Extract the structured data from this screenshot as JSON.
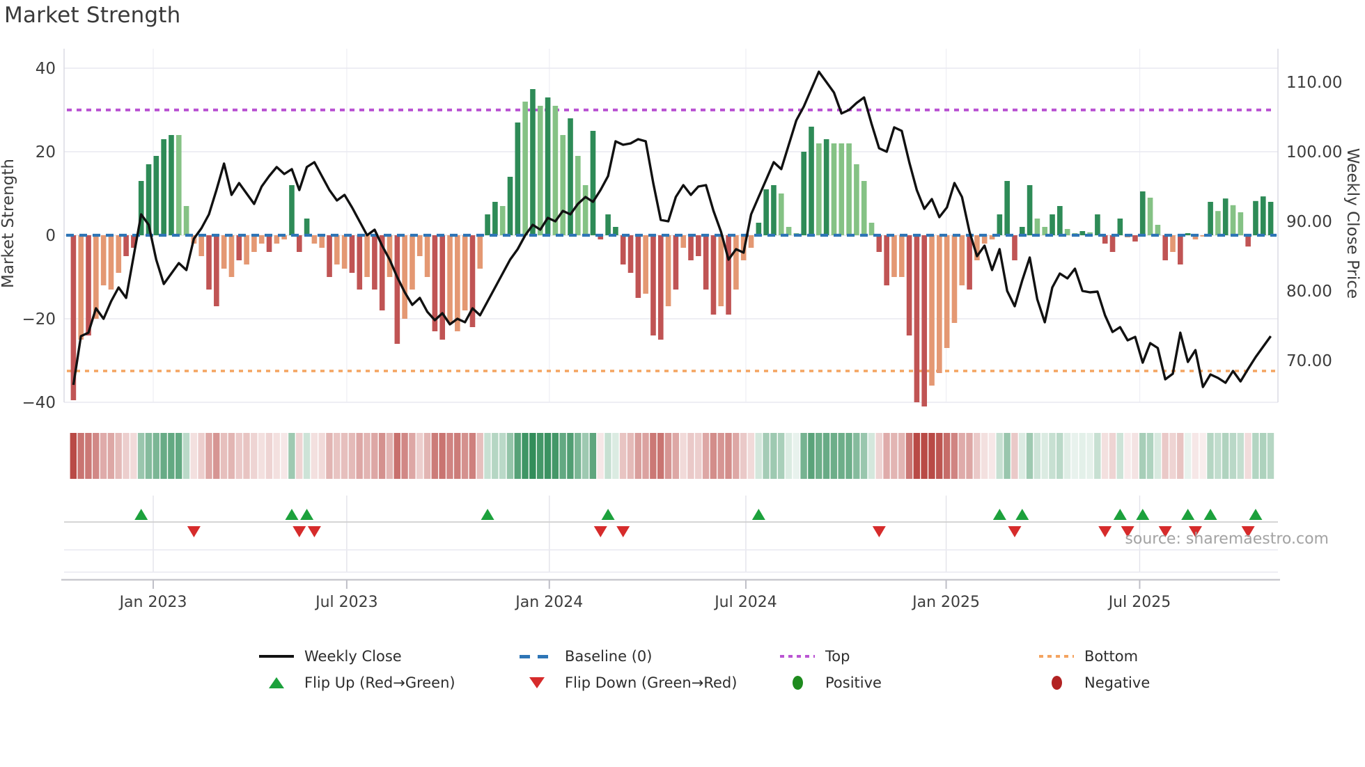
{
  "title": "Market Strength",
  "source": "source: sharemaestro.com",
  "axes": {
    "left_label": "Market Strength",
    "right_label": "Weekly Close Price",
    "left_ticks": [
      {
        "v": 40,
        "label": "40"
      },
      {
        "v": 20,
        "label": "20"
      },
      {
        "v": 0,
        "label": "0"
      },
      {
        "v": -20,
        "label": "−20"
      },
      {
        "v": -40,
        "label": "−40"
      }
    ],
    "right_ticks": [
      {
        "p": 110,
        "label": "110.00"
      },
      {
        "p": 100,
        "label": "100.00"
      },
      {
        "p": 90,
        "label": "90.00"
      },
      {
        "p": 80,
        "label": "80.00"
      },
      {
        "p": 70,
        "label": "70.00"
      }
    ],
    "x_ticks": [
      {
        "week": 10.6,
        "label": "Jan 2023"
      },
      {
        "week": 36.3,
        "label": "Jul 2023"
      },
      {
        "week": 63.2,
        "label": "Jan 2024"
      },
      {
        "week": 89.3,
        "label": "Jul 2024"
      },
      {
        "week": 115.9,
        "label": "Jan 2025"
      },
      {
        "week": 141.6,
        "label": "Jul 2025"
      }
    ]
  },
  "legend": {
    "items": [
      {
        "label": "Weekly Close",
        "type": "line"
      },
      {
        "label": "Baseline (0)",
        "type": "dash-blue"
      },
      {
        "label": "Top",
        "type": "dot-purple"
      },
      {
        "label": "Bottom",
        "type": "dot-orange"
      },
      {
        "label": "Flip Up (Red→Green)",
        "type": "tri-up"
      },
      {
        "label": "Flip Down (Green→Red)",
        "type": "tri-down"
      },
      {
        "label": "Positive",
        "type": "dot-pos"
      },
      {
        "label": "Negative",
        "type": "dot-neg"
      }
    ]
  },
  "colors": {
    "dark_green": "#2e8b57",
    "light_green": "#85c285",
    "dark_red": "#c05454",
    "salmon": "#e49873",
    "baseline_blue": "#2e75b6",
    "top_purple": "#ba55d3",
    "bottom_orange": "#f4a460",
    "price_line": "#111111",
    "flip_up_green": "#1ca13c",
    "flip_down_red": "#d62b2b",
    "grid": "#e9e9f1",
    "spine": "#cfcfd6",
    "text": "#3d3d3d"
  },
  "chart_data": {
    "type": "bar+line",
    "title": "Market Strength",
    "ylabel_left": "Market Strength",
    "ylabel_right": "Weekly Close Price",
    "ylim_left": [
      -40,
      40
    ],
    "ylim_right": [
      70,
      110
    ],
    "baseline": 0,
    "top_level": 30,
    "bottom_level": -32.5,
    "weeks": 160,
    "strength_values": [
      -39.5,
      -25,
      -24,
      -20,
      -12,
      -13,
      -9,
      -5,
      -3,
      13,
      17,
      19,
      23,
      24,
      24,
      7,
      -2,
      -5,
      -13,
      -17,
      -8,
      -10,
      -6,
      -7,
      -4,
      -2,
      -4,
      -2,
      -1,
      12,
      -4,
      4,
      -2,
      -3,
      -10,
      -7,
      -8,
      -9,
      -13,
      -10,
      -13,
      -18,
      -10,
      -26,
      -20,
      -13,
      -5,
      -10,
      -23,
      -25,
      -21,
      -23,
      -18,
      -22,
      -8,
      5,
      8,
      7,
      14,
      27,
      32,
      35,
      31,
      33,
      31,
      24,
      28,
      19,
      12,
      25,
      -1,
      5,
      2,
      -7,
      -9,
      -15,
      -14,
      -24,
      -25,
      -17,
      -13,
      -3,
      -6,
      -5,
      -13,
      -19,
      -17,
      -19,
      -13,
      -6,
      -3,
      3,
      11,
      12,
      10,
      2,
      0.5,
      20,
      26,
      22,
      23,
      22,
      22,
      22,
      17,
      13,
      3,
      -4,
      -12,
      -10,
      -10,
      -24,
      -40,
      -41,
      -36,
      -33,
      -27,
      -21,
      -12,
      -13,
      -6,
      -2,
      -1,
      5,
      13,
      -6,
      2,
      12,
      4,
      2,
      5,
      7,
      1.5,
      0.5,
      1,
      0.7,
      5,
      -2,
      -4,
      4,
      -0.5,
      -1.5,
      10.5,
      9,
      2.5,
      -6,
      -4,
      -7,
      0.5,
      -1,
      -0.3,
      8,
      5.8,
      8.8,
      7.2,
      5.5,
      -2.7,
      8.2,
      9.3,
      8
    ],
    "strength_palette": [
      "dr",
      "sr",
      "dr",
      "sr",
      "sr",
      "sr",
      "sr",
      "dr",
      "dr",
      "dg",
      "dg",
      "dg",
      "dg",
      "dg",
      "lg",
      "lg",
      "sr",
      "sr",
      "dr",
      "dr",
      "sr",
      "sr",
      "dr",
      "sr",
      "sr",
      "sr",
      "dr",
      "sr",
      "sr",
      "dg",
      "dr",
      "dg",
      "sr",
      "sr",
      "dr",
      "sr",
      "sr",
      "dr",
      "dr",
      "sr",
      "dr",
      "dr",
      "sr",
      "dr",
      "sr",
      "sr",
      "sr",
      "sr",
      "dr",
      "dr",
      "sr",
      "sr",
      "sr",
      "dr",
      "sr",
      "dg",
      "dg",
      "lg",
      "dg",
      "dg",
      "lg",
      "dg",
      "lg",
      "dg",
      "lg",
      "lg",
      "dg",
      "lg",
      "lg",
      "dg",
      "dr",
      "dg",
      "dg",
      "dr",
      "dr",
      "dr",
      "sr",
      "dr",
      "dr",
      "sr",
      "dr",
      "sr",
      "dr",
      "dr",
      "dr",
      "dr",
      "sr",
      "dr",
      "sr",
      "sr",
      "sr",
      "dg",
      "dg",
      "dg",
      "lg",
      "lg",
      "lg",
      "dg",
      "dg",
      "lg",
      "dg",
      "lg",
      "lg",
      "lg",
      "lg",
      "lg",
      "lg",
      "dr",
      "dr",
      "sr",
      "sr",
      "dr",
      "dr",
      "dr",
      "sr",
      "sr",
      "sr",
      "sr",
      "sr",
      "dr",
      "sr",
      "sr",
      "sr",
      "dg",
      "dg",
      "dr",
      "dg",
      "dg",
      "lg",
      "lg",
      "dg",
      "dg",
      "lg",
      "lg",
      "dg",
      "lg",
      "dg",
      "dr",
      "dr",
      "dg",
      "sr",
      "dr",
      "dg",
      "lg",
      "lg",
      "dr",
      "sr",
      "dr",
      "dg",
      "sr",
      "sr",
      "dg",
      "lg",
      "dg",
      "lg",
      "lg",
      "dr",
      "dg",
      "dg",
      "dg"
    ],
    "weekly_close": [
      66.5,
      73.5,
      74.0,
      77.5,
      76.0,
      78.5,
      80.5,
      79.0,
      85.0,
      91.0,
      89.5,
      84.5,
      81.0,
      82.5,
      84.0,
      83.0,
      87.5,
      89.0,
      91.0,
      94.5,
      98.3,
      93.8,
      95.5,
      94.0,
      92.5,
      95.0,
      96.5,
      97.8,
      96.8,
      97.5,
      94.5,
      97.8,
      98.5,
      96.5,
      94.5,
      93.0,
      93.8,
      92.0,
      90.0,
      88.0,
      88.8,
      86.5,
      84.5,
      82.0,
      79.8,
      78.0,
      79.0,
      77.0,
      75.8,
      76.8,
      75.2,
      76.0,
      75.5,
      77.5,
      76.5,
      78.5,
      80.5,
      82.5,
      84.5,
      86.0,
      88.0,
      89.5,
      88.8,
      90.5,
      90.0,
      91.5,
      91.0,
      92.5,
      93.5,
      92.8,
      94.5,
      96.5,
      101.5,
      101.0,
      101.2,
      101.8,
      101.5,
      95.5,
      90.2,
      90.0,
      93.5,
      95.2,
      93.8,
      95.0,
      95.2,
      91.5,
      88.5,
      84.5,
      86.0,
      85.5,
      91.0,
      93.5,
      96.0,
      98.5,
      97.5,
      101.0,
      104.5,
      106.5,
      109.0,
      111.5,
      110.0,
      108.5,
      105.5,
      106.0,
      107.0,
      107.8,
      104.0,
      100.5,
      100.0,
      103.5,
      103.0,
      98.5,
      94.5,
      91.8,
      93.2,
      90.6,
      92.0,
      95.5,
      93.5,
      88.5,
      85.0,
      86.5,
      83.0,
      86.0,
      80.0,
      77.8,
      81.5,
      84.8,
      78.8,
      75.5,
      80.5,
      82.5,
      81.8,
      83.2,
      80.0,
      79.8,
      79.9,
      76.5,
      74.1,
      74.8,
      72.9,
      73.4,
      69.7,
      72.5,
      71.8,
      67.3,
      68.1,
      74.0,
      69.8,
      71.5,
      66.2,
      68.0,
      67.5,
      66.8,
      68.5,
      67.0,
      68.8,
      70.5,
      72.0,
      73.5
    ],
    "flip_up_weeks": [
      9,
      29,
      31,
      55,
      71,
      91,
      123,
      126,
      139,
      142,
      148,
      151,
      157
    ],
    "flip_down_weeks": [
      16,
      30,
      32,
      70,
      73,
      107,
      125,
      137,
      140,
      145,
      149,
      156
    ],
    "legend_position": "bottom",
    "grid": true
  }
}
